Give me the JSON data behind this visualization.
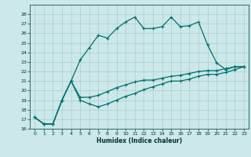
{
  "xlabel": "Humidex (Indice chaleur)",
  "background_color": "#cce8e8",
  "grid_color": "#aacccc",
  "line_color": "#007070",
  "xlim": [
    -0.5,
    23.5
  ],
  "ylim": [
    16,
    29
  ],
  "yticks": [
    16,
    17,
    18,
    19,
    20,
    21,
    22,
    23,
    24,
    25,
    26,
    27,
    28
  ],
  "xticks": [
    0,
    1,
    2,
    3,
    4,
    5,
    6,
    7,
    8,
    9,
    10,
    11,
    12,
    13,
    14,
    15,
    16,
    17,
    18,
    19,
    20,
    21,
    22,
    23
  ],
  "line1_x": [
    0,
    1,
    2,
    3,
    4,
    5,
    6,
    7,
    8,
    9,
    10,
    11,
    12,
    13,
    14,
    15,
    16,
    17,
    18,
    19,
    20,
    21,
    22,
    23
  ],
  "line1_y": [
    17.2,
    16.5,
    16.5,
    19.0,
    21.0,
    23.2,
    24.5,
    25.8,
    25.5,
    26.5,
    27.2,
    27.7,
    26.5,
    26.5,
    26.7,
    27.7,
    26.7,
    26.8,
    27.2,
    24.8,
    22.9,
    22.2,
    22.5,
    22.5
  ],
  "line2_x": [
    0,
    1,
    2,
    3,
    4,
    5,
    6,
    7,
    8,
    9,
    10,
    11,
    12,
    13,
    14,
    15,
    16,
    17,
    18,
    19,
    20,
    21,
    22,
    23
  ],
  "line2_y": [
    17.2,
    16.5,
    16.5,
    19.0,
    21.0,
    19.3,
    19.3,
    19.5,
    19.9,
    20.3,
    20.6,
    20.9,
    21.1,
    21.1,
    21.3,
    21.5,
    21.6,
    21.8,
    22.0,
    22.1,
    22.1,
    22.3,
    22.5,
    22.5
  ],
  "line3_x": [
    0,
    1,
    2,
    3,
    4,
    5,
    6,
    7,
    8,
    9,
    10,
    11,
    12,
    13,
    14,
    15,
    16,
    17,
    18,
    19,
    20,
    21,
    22,
    23
  ],
  "line3_y": [
    17.2,
    16.5,
    16.5,
    19.0,
    21.0,
    19.0,
    18.6,
    18.3,
    18.6,
    19.0,
    19.4,
    19.7,
    20.1,
    20.4,
    20.7,
    21.0,
    21.0,
    21.2,
    21.5,
    21.7,
    21.7,
    21.9,
    22.2,
    22.5
  ]
}
